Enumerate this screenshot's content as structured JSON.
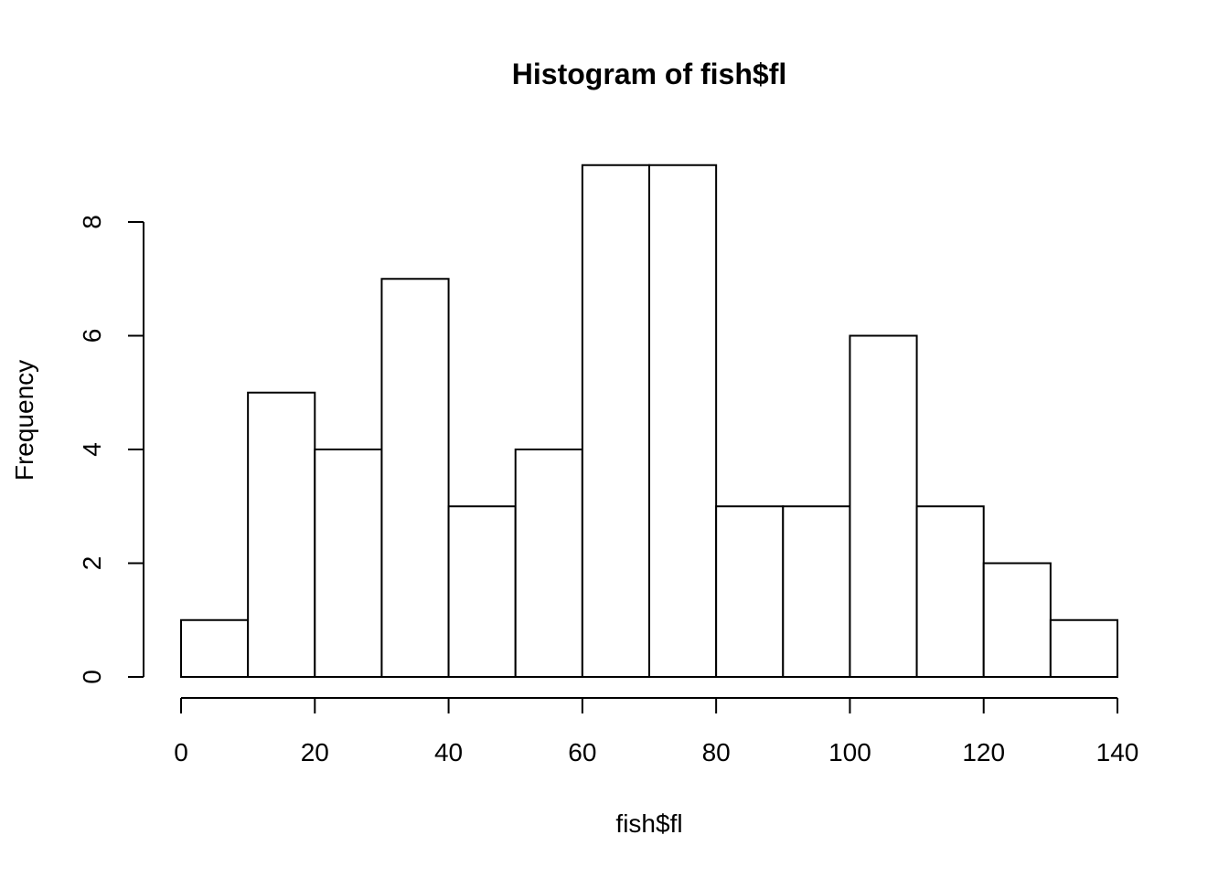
{
  "chart_data": {
    "type": "bar",
    "subtype": "histogram",
    "title": "Histogram of fish$fl",
    "xlabel": "fish$fl",
    "ylabel": "Frequency",
    "bin_edges": [
      0,
      10,
      20,
      30,
      40,
      50,
      60,
      70,
      80,
      90,
      100,
      110,
      120,
      130,
      140
    ],
    "values": [
      1,
      5,
      4,
      7,
      3,
      4,
      9,
      9,
      3,
      3,
      6,
      3,
      2,
      1
    ],
    "xlim": [
      0,
      140
    ],
    "ylim": [
      0,
      9
    ],
    "x_ticks": [
      0,
      20,
      40,
      60,
      80,
      100,
      120,
      140
    ],
    "x_tick_labels": [
      "0",
      "20",
      "40",
      "60",
      "80",
      "100",
      "120",
      "140"
    ],
    "y_ticks": [
      0,
      2,
      4,
      6,
      8
    ],
    "y_tick_labels": [
      "0",
      "2",
      "4",
      "6",
      "8"
    ],
    "grid": false,
    "legend": "none",
    "bar_fill": "#ffffff",
    "bar_stroke": "#000000"
  }
}
